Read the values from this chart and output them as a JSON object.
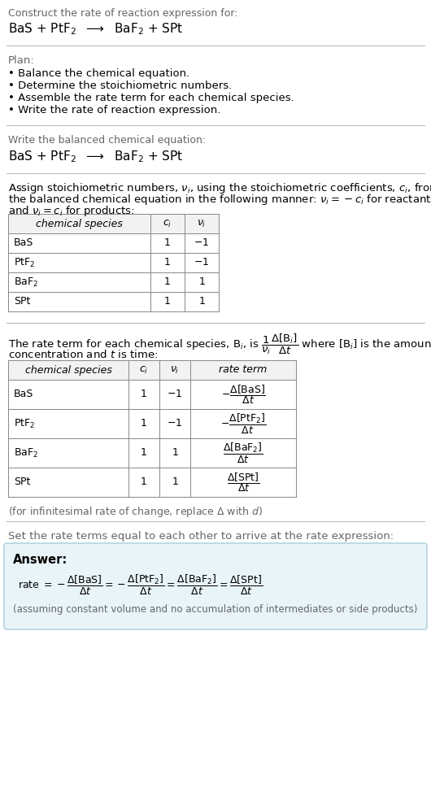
{
  "title_text": "Construct the rate of reaction expression for:",
  "reaction_equation": "BaS + PtF$_2$  $\\longrightarrow$  BaF$_2$ + SPt",
  "plan_header": "Plan:",
  "plan_items": [
    "Balance the chemical equation.",
    "Determine the stoichiometric numbers.",
    "Assemble the rate term for each chemical species.",
    "Write the rate of reaction expression."
  ],
  "balanced_header": "Write the balanced chemical equation:",
  "balanced_eq": "BaS + PtF$_2$  $\\longrightarrow$  BaF$_2$ + SPt",
  "stoich_intro1": "Assign stoichiometric numbers, $\\nu_i$, using the stoichiometric coefficients, $c_i$, from",
  "stoich_intro2": "the balanced chemical equation in the following manner: $\\nu_i = -c_i$ for reactants",
  "stoich_intro3": "and $\\nu_i = c_i$ for products:",
  "table1_headers": [
    "chemical species",
    "$c_i$",
    "$\\nu_i$"
  ],
  "table1_rows": [
    [
      "BaS",
      "1",
      "$-1$"
    ],
    [
      "PtF$_2$",
      "1",
      "$-1$"
    ],
    [
      "BaF$_2$",
      "1",
      "$1$"
    ],
    [
      "SPt",
      "1",
      "$1$"
    ]
  ],
  "rate_intro1": "The rate term for each chemical species, B$_i$, is $\\dfrac{1}{\\nu_i}\\dfrac{\\Delta[\\mathrm{B}_i]}{\\Delta t}$ where [B$_i$] is the amount",
  "rate_intro2": "concentration and $t$ is time:",
  "table2_headers": [
    "chemical species",
    "$c_i$",
    "$\\nu_i$",
    "rate term"
  ],
  "table2_rows": [
    [
      "BaS",
      "1",
      "$-1$",
      "$-\\dfrac{\\Delta[\\mathrm{BaS}]}{\\Delta t}$"
    ],
    [
      "PtF$_2$",
      "1",
      "$-1$",
      "$-\\dfrac{\\Delta[\\mathrm{PtF_2}]}{\\Delta t}$"
    ],
    [
      "BaF$_2$",
      "1",
      "$1$",
      "$\\dfrac{\\Delta[\\mathrm{BaF_2}]}{\\Delta t}$"
    ],
    [
      "SPt",
      "1",
      "$1$",
      "$\\dfrac{\\Delta[\\mathrm{SPt}]}{\\Delta t}$"
    ]
  ],
  "infinitesimal_note": "(for infinitesimal rate of change, replace Δ with $d$)",
  "answer_intro": "Set the rate terms equal to each other to arrive at the rate expression:",
  "answer_label": "Answer:",
  "answer_eq": "rate $= -\\dfrac{\\Delta[\\mathrm{BaS}]}{\\Delta t} = -\\dfrac{\\Delta[\\mathrm{PtF_2}]}{\\Delta t} = \\dfrac{\\Delta[\\mathrm{BaF_2}]}{\\Delta t} = \\dfrac{\\Delta[\\mathrm{SPt}]}{\\Delta t}$",
  "answer_note": "(assuming constant volume and no accumulation of intermediates or side products)",
  "bg_color": "#ffffff",
  "answer_box_color": "#e8f4f8",
  "answer_box_border": "#aaccdd",
  "line_color": "#bbbbbb",
  "gray_text": "#666666"
}
